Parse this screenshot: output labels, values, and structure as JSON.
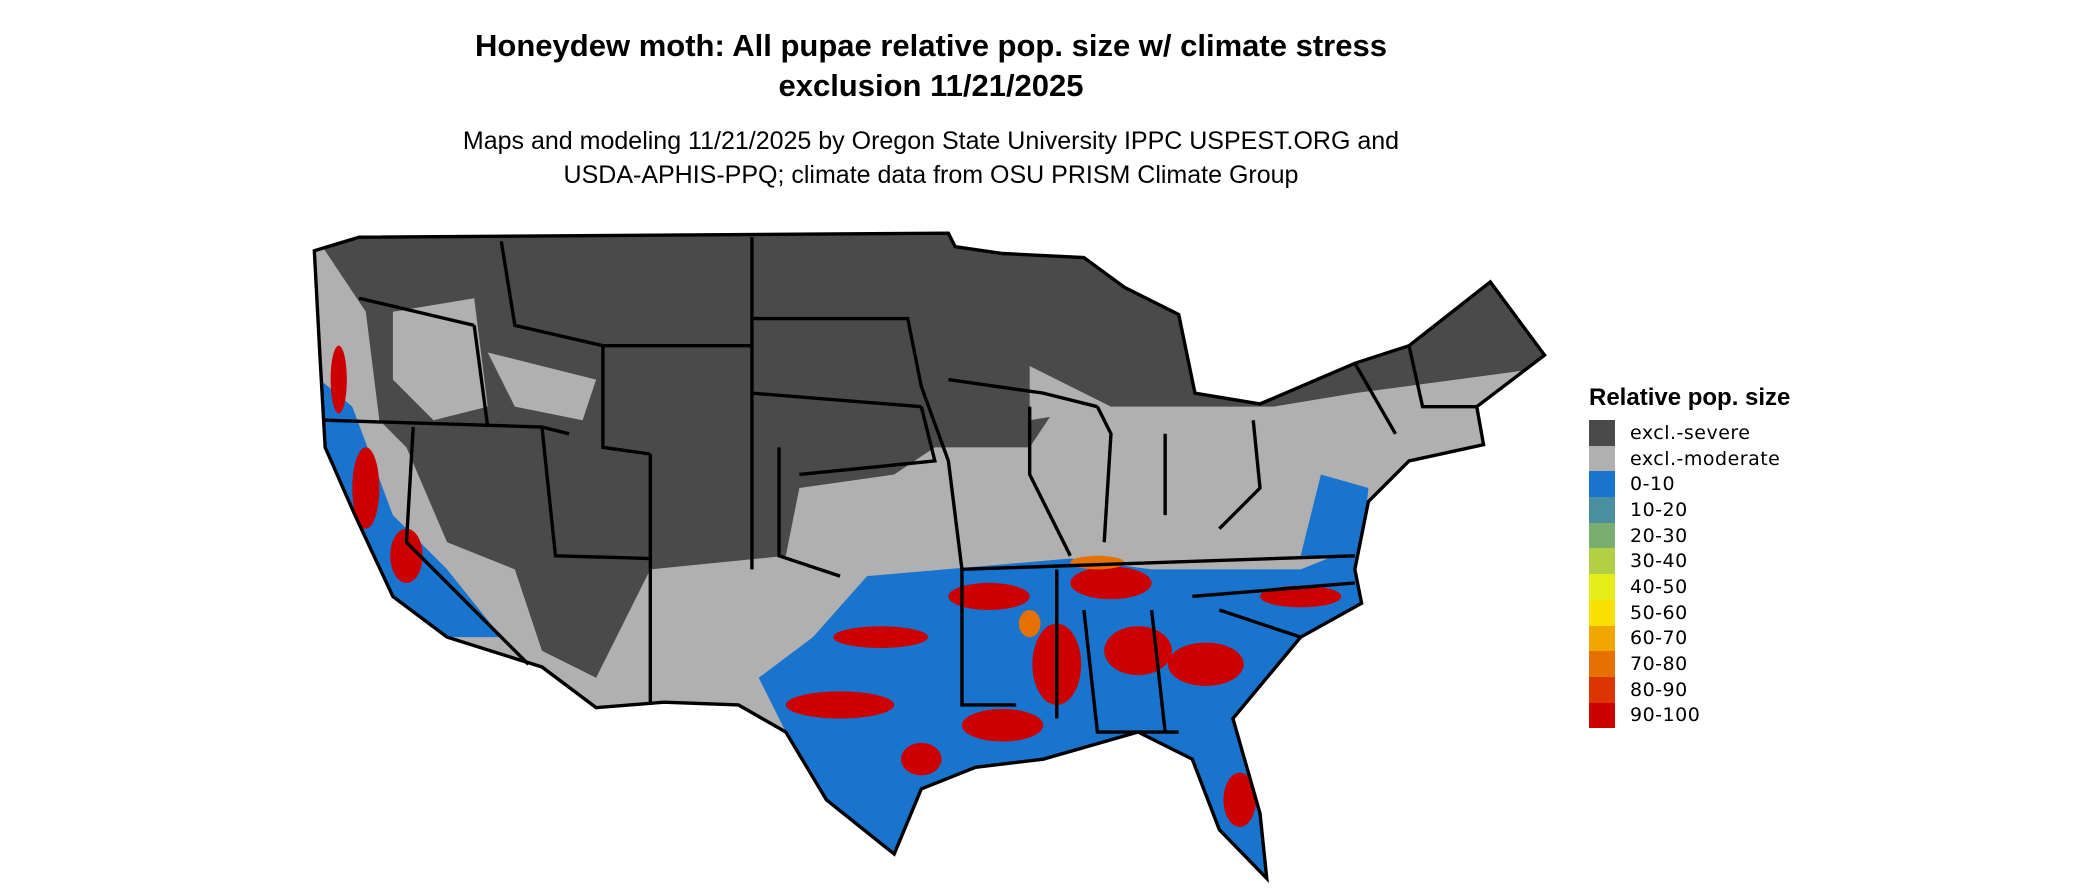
{
  "title": "Honeydew moth: All pupae relative pop. size w/ climate stress exclusion 11/21/2025",
  "title_line1": "Honeydew moth: All pupae relative pop. size w/ climate stress",
  "title_line2": "exclusion 11/21/2025",
  "subtitle_line1": "Maps and modeling 11/21/2025 by Oregon State University IPPC USPEST.ORG and",
  "subtitle_line2": "USDA-APHIS-PPQ; climate data from OSU PRISM Climate Group",
  "legend": {
    "title": "Relative pop. size",
    "items": [
      {
        "label": "excl.-severe",
        "color": "#4a4a4a"
      },
      {
        "label": "excl.-moderate",
        "color": "#b0b0b0"
      },
      {
        "label": "0-10",
        "color": "#1874cd"
      },
      {
        "label": "10-20",
        "color": "#4a8f9f"
      },
      {
        "label": "20-30",
        "color": "#7aae70"
      },
      {
        "label": "30-40",
        "color": "#b2d045"
      },
      {
        "label": "40-50",
        "color": "#e6ee1a"
      },
      {
        "label": "50-60",
        "color": "#f8e000"
      },
      {
        "label": "60-70",
        "color": "#f0a800"
      },
      {
        "label": "70-80",
        "color": "#e67000"
      },
      {
        "label": "80-90",
        "color": "#dc3600"
      },
      {
        "label": "90-100",
        "color": "#cd0000"
      }
    ]
  }
}
